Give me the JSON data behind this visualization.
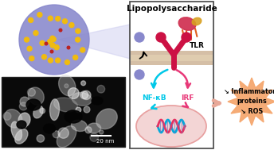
{
  "fig_width": 3.44,
  "fig_height": 1.89,
  "dpi": 100,
  "bg_color": "#ffffff",
  "title_text": "Lipopolysaccharide",
  "title_fontsize": 7.5,
  "tlr_label": "TLR",
  "nfkb_label": "NF-κB",
  "irf_label": "IRF",
  "burst_text": "↘ Inflammatory\nproteins\n↘ ROS",
  "burst_color": "#f5a870",
  "burst_text_size": 5.8,
  "cell_membrane_color": "#c8aa88",
  "nucleus_color": "#f2cece",
  "arrow_cyan": "#00c8e8",
  "arrow_pink": "#e83878",
  "nfkb_color": "#00c8e8",
  "irf_color": "#e83878",
  "box_border": "#444444",
  "nm_label": "20 nm",
  "nano_sphere_color": "#8888cc",
  "gold_dot_color": "#f0bb10",
  "red_dot_color": "#bb2222",
  "tlr_color": "#cc1144",
  "lps_red": "#d03050",
  "lps_yellow": "#d8a020",
  "lps_orange": "#e06020"
}
